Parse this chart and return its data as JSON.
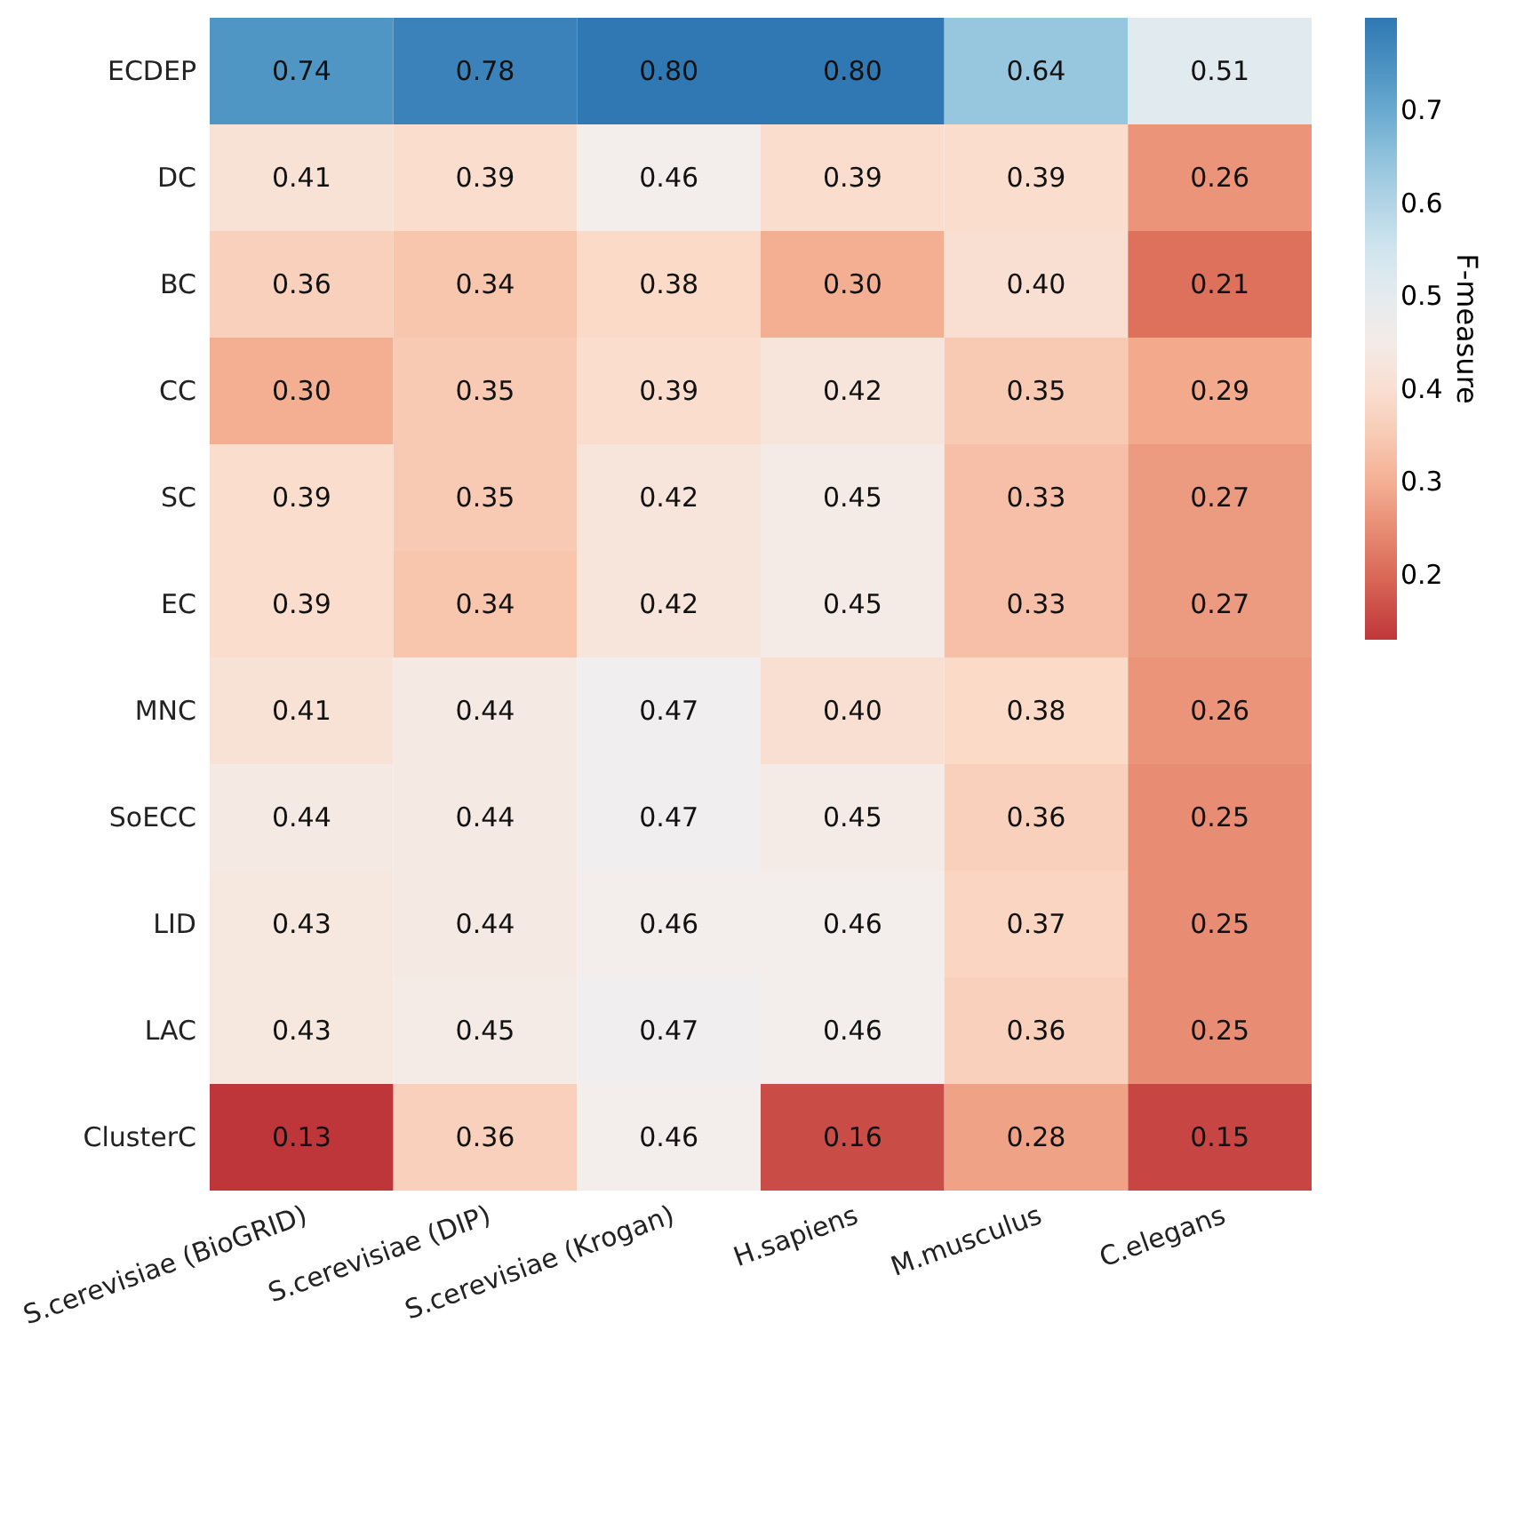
{
  "chart_data": {
    "type": "heatmap",
    "categories": [
      "S.cerevisiae (BioGRID)",
      "S.cerevisiae (DIP)",
      "S.cerevisiae (Krogan)",
      "H.sapiens",
      "M.musculus",
      "C.elegans"
    ],
    "y_categories": [
      "ECDEP",
      "DC",
      "BC",
      "CC",
      "SC",
      "EC",
      "MNC",
      "SoECC",
      "LID",
      "LAC",
      "ClusterC"
    ],
    "cells": [
      [
        0.74,
        0.78,
        0.8,
        0.8,
        0.64,
        0.51
      ],
      [
        0.41,
        0.39,
        0.46,
        0.39,
        0.39,
        0.26
      ],
      [
        0.36,
        0.34,
        0.38,
        0.3,
        0.4,
        0.21
      ],
      [
        0.3,
        0.35,
        0.39,
        0.42,
        0.35,
        0.29
      ],
      [
        0.39,
        0.35,
        0.42,
        0.45,
        0.33,
        0.27
      ],
      [
        0.39,
        0.34,
        0.42,
        0.45,
        0.33,
        0.27
      ],
      [
        0.41,
        0.44,
        0.47,
        0.4,
        0.38,
        0.26
      ],
      [
        0.44,
        0.44,
        0.47,
        0.45,
        0.36,
        0.25
      ],
      [
        0.43,
        0.44,
        0.46,
        0.46,
        0.37,
        0.25
      ],
      [
        0.43,
        0.45,
        0.47,
        0.46,
        0.36,
        0.25
      ],
      [
        0.13,
        0.36,
        0.46,
        0.16,
        0.28,
        0.15
      ]
    ],
    "clim": [
      0.13,
      0.8
    ],
    "cticks": [
      0.2,
      0.3,
      0.4,
      0.5,
      0.6,
      0.7
    ],
    "clabel": "F-measure",
    "cell_labels": [
      [
        "0.74",
        "0.78",
        "0.80",
        "0.80",
        "0.64",
        "0.51"
      ],
      [
        "0.41",
        "0.39",
        "0.46",
        "0.39",
        "0.39",
        "0.26"
      ],
      [
        "0.36",
        "0.34",
        "0.38",
        "0.30",
        "0.40",
        "0.21"
      ],
      [
        "0.30",
        "0.35",
        "0.39",
        "0.42",
        "0.35",
        "0.29"
      ],
      [
        "0.39",
        "0.35",
        "0.42",
        "0.45",
        "0.33",
        "0.27"
      ],
      [
        "0.39",
        "0.34",
        "0.42",
        "0.45",
        "0.33",
        "0.27"
      ],
      [
        "0.41",
        "0.44",
        "0.47",
        "0.40",
        "0.38",
        "0.26"
      ],
      [
        "0.44",
        "0.44",
        "0.47",
        "0.45",
        "0.36",
        "0.25"
      ],
      [
        "0.43",
        "0.44",
        "0.46",
        "0.46",
        "0.37",
        "0.25"
      ],
      [
        "0.43",
        "0.45",
        "0.47",
        "0.46",
        "0.36",
        "0.25"
      ],
      [
        "0.13",
        "0.36",
        "0.46",
        "0.16",
        "0.28",
        "0.15"
      ]
    ]
  }
}
